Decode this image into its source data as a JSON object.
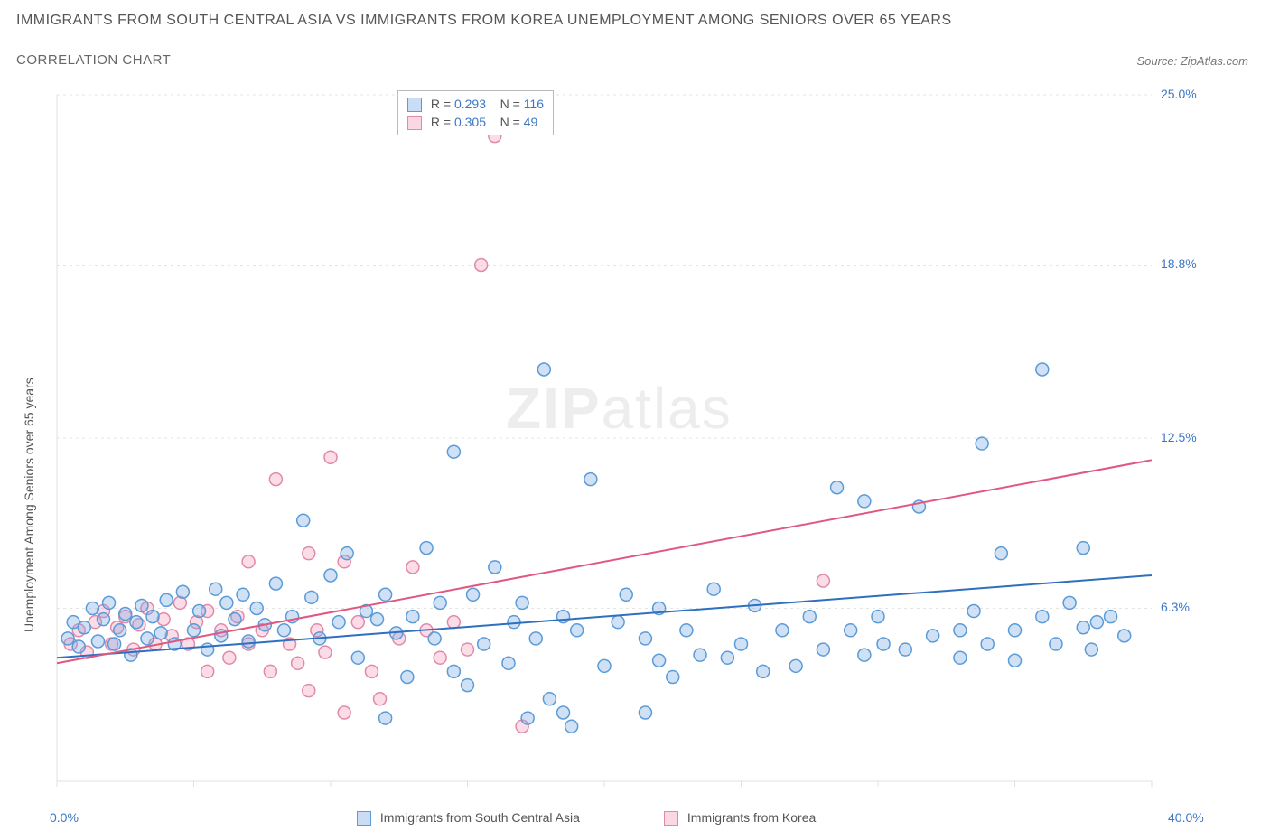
{
  "title": "IMMIGRANTS FROM SOUTH CENTRAL ASIA VS IMMIGRANTS FROM KOREA UNEMPLOYMENT AMONG SENIORS OVER 65 YEARS",
  "subtitle": "CORRELATION CHART",
  "source": "Source: ZipAtlas.com",
  "ylabel": "Unemployment Among Seniors over 65 years",
  "watermark_prefix": "ZIP",
  "watermark_suffix": "atlas",
  "stats_legend": {
    "rows": [
      {
        "swatch": "blue",
        "r_label": "R = ",
        "r_value": "0.293",
        "n_label": "N = ",
        "n_value": "116"
      },
      {
        "swatch": "pink",
        "r_label": "R = ",
        "r_value": "0.305",
        "n_label": "N = ",
        "n_value": "49"
      }
    ]
  },
  "series_legend": [
    {
      "swatch": "blue",
      "label": "Immigrants from South Central Asia"
    },
    {
      "swatch": "pink",
      "label": "Immigrants from Korea"
    }
  ],
  "chart": {
    "type": "scatter",
    "xlim": [
      0,
      40
    ],
    "ylim": [
      0,
      25
    ],
    "x_major_ticks": [
      0,
      5,
      10,
      15,
      20,
      25,
      30,
      35,
      40
    ],
    "x_axis_labels": [
      {
        "value": 0,
        "text": "0.0%"
      },
      {
        "value": 40,
        "text": "40.0%"
      }
    ],
    "y_gridlines": [
      {
        "value": 6.3,
        "text": "6.3%"
      },
      {
        "value": 12.5,
        "text": "12.5%"
      },
      {
        "value": 18.8,
        "text": "18.8%"
      },
      {
        "value": 25.0,
        "text": "25.0%"
      }
    ],
    "background_color": "#ffffff",
    "grid_color": "#e4e4e4",
    "axis_color": "#e0e0e0",
    "marker_radius": 7,
    "marker_stroke_width": 1.5,
    "trend_line_width": 2,
    "series": {
      "blue": {
        "fill": "rgba(120,170,230,0.35)",
        "stroke": "#5a9bd8",
        "trend_color": "#2f6fc0",
        "trend": {
          "x1": 0,
          "y1": 4.5,
          "x2": 40,
          "y2": 7.5
        },
        "points": [
          [
            0.4,
            5.2
          ],
          [
            0.6,
            5.8
          ],
          [
            0.8,
            4.9
          ],
          [
            1.0,
            5.6
          ],
          [
            1.3,
            6.3
          ],
          [
            1.5,
            5.1
          ],
          [
            1.7,
            5.9
          ],
          [
            1.9,
            6.5
          ],
          [
            2.1,
            5.0
          ],
          [
            2.3,
            5.5
          ],
          [
            2.5,
            6.1
          ],
          [
            2.7,
            4.6
          ],
          [
            2.9,
            5.8
          ],
          [
            3.1,
            6.4
          ],
          [
            3.3,
            5.2
          ],
          [
            3.5,
            6.0
          ],
          [
            3.8,
            5.4
          ],
          [
            4.0,
            6.6
          ],
          [
            4.3,
            5.0
          ],
          [
            4.6,
            6.9
          ],
          [
            5.0,
            5.5
          ],
          [
            5.2,
            6.2
          ],
          [
            5.5,
            4.8
          ],
          [
            5.8,
            7.0
          ],
          [
            6.0,
            5.3
          ],
          [
            6.2,
            6.5
          ],
          [
            6.5,
            5.9
          ],
          [
            6.8,
            6.8
          ],
          [
            7.0,
            5.1
          ],
          [
            7.3,
            6.3
          ],
          [
            7.6,
            5.7
          ],
          [
            8.0,
            7.2
          ],
          [
            8.3,
            5.5
          ],
          [
            8.6,
            6.0
          ],
          [
            9.0,
            9.5
          ],
          [
            9.3,
            6.7
          ],
          [
            9.6,
            5.2
          ],
          [
            10.0,
            7.5
          ],
          [
            10.3,
            5.8
          ],
          [
            10.6,
            8.3
          ],
          [
            11.0,
            4.5
          ],
          [
            11.3,
            6.2
          ],
          [
            11.7,
            5.9
          ],
          [
            12.0,
            6.8
          ],
          [
            12.0,
            2.3
          ],
          [
            12.4,
            5.4
          ],
          [
            12.8,
            3.8
          ],
          [
            13.0,
            6.0
          ],
          [
            13.5,
            8.5
          ],
          [
            13.8,
            5.2
          ],
          [
            14.0,
            6.5
          ],
          [
            14.5,
            4.0
          ],
          [
            14.5,
            12.0
          ],
          [
            15.0,
            3.5
          ],
          [
            15.2,
            6.8
          ],
          [
            15.6,
            5.0
          ],
          [
            16.0,
            7.8
          ],
          [
            16.5,
            4.3
          ],
          [
            16.7,
            5.8
          ],
          [
            17.0,
            6.5
          ],
          [
            17.2,
            2.3
          ],
          [
            17.5,
            5.2
          ],
          [
            17.8,
            15.0
          ],
          [
            18.0,
            3.0
          ],
          [
            18.5,
            6.0
          ],
          [
            18.5,
            2.5
          ],
          [
            18.8,
            2.0
          ],
          [
            19.0,
            5.5
          ],
          [
            19.5,
            11.0
          ],
          [
            20.0,
            4.2
          ],
          [
            20.5,
            5.8
          ],
          [
            20.8,
            6.8
          ],
          [
            21.5,
            5.2
          ],
          [
            21.5,
            2.5
          ],
          [
            22.0,
            6.3
          ],
          [
            22.0,
            4.4
          ],
          [
            22.5,
            3.8
          ],
          [
            23.0,
            5.5
          ],
          [
            23.5,
            4.6
          ],
          [
            24.0,
            7.0
          ],
          [
            24.5,
            4.5
          ],
          [
            25.0,
            5.0
          ],
          [
            25.5,
            6.4
          ],
          [
            25.8,
            4.0
          ],
          [
            26.5,
            5.5
          ],
          [
            27.0,
            4.2
          ],
          [
            27.5,
            6.0
          ],
          [
            28.0,
            4.8
          ],
          [
            28.5,
            10.7
          ],
          [
            29.0,
            5.5
          ],
          [
            29.5,
            10.2
          ],
          [
            29.5,
            4.6
          ],
          [
            30.0,
            6.0
          ],
          [
            30.2,
            5.0
          ],
          [
            31.0,
            4.8
          ],
          [
            31.5,
            10.0
          ],
          [
            32.0,
            5.3
          ],
          [
            33.0,
            5.5
          ],
          [
            33.0,
            4.5
          ],
          [
            33.5,
            6.2
          ],
          [
            33.8,
            12.3
          ],
          [
            34.0,
            5.0
          ],
          [
            34.5,
            8.3
          ],
          [
            35.0,
            5.5
          ],
          [
            35.0,
            4.4
          ],
          [
            36.0,
            6.0
          ],
          [
            36.0,
            15.0
          ],
          [
            36.5,
            5.0
          ],
          [
            37.0,
            6.5
          ],
          [
            37.5,
            5.6
          ],
          [
            37.5,
            8.5
          ],
          [
            37.8,
            4.8
          ],
          [
            38.0,
            5.8
          ],
          [
            38.5,
            6.0
          ],
          [
            39.0,
            5.3
          ]
        ]
      },
      "pink": {
        "fill": "rgba(245,155,185,0.35)",
        "stroke": "#e08aaa",
        "trend_color": "#e05880",
        "trend": {
          "x1": 0,
          "y1": 4.3,
          "x2": 40,
          "y2": 11.7
        },
        "points": [
          [
            0.5,
            5.0
          ],
          [
            0.8,
            5.5
          ],
          [
            1.1,
            4.7
          ],
          [
            1.4,
            5.8
          ],
          [
            1.7,
            6.2
          ],
          [
            2.0,
            5.0
          ],
          [
            2.2,
            5.6
          ],
          [
            2.5,
            6.0
          ],
          [
            2.8,
            4.8
          ],
          [
            3.0,
            5.7
          ],
          [
            3.3,
            6.3
          ],
          [
            3.6,
            5.0
          ],
          [
            3.9,
            5.9
          ],
          [
            4.2,
            5.3
          ],
          [
            4.5,
            6.5
          ],
          [
            4.8,
            5.0
          ],
          [
            5.1,
            5.8
          ],
          [
            5.5,
            4.0
          ],
          [
            5.5,
            6.2
          ],
          [
            6.0,
            5.5
          ],
          [
            6.3,
            4.5
          ],
          [
            6.6,
            6.0
          ],
          [
            7.0,
            5.0
          ],
          [
            7.0,
            8.0
          ],
          [
            7.5,
            5.5
          ],
          [
            7.8,
            4.0
          ],
          [
            8.0,
            11.0
          ],
          [
            8.5,
            5.0
          ],
          [
            8.8,
            4.3
          ],
          [
            9.2,
            8.3
          ],
          [
            9.2,
            3.3
          ],
          [
            9.5,
            5.5
          ],
          [
            9.8,
            4.7
          ],
          [
            10.0,
            11.8
          ],
          [
            10.5,
            8.0
          ],
          [
            10.5,
            2.5
          ],
          [
            11.0,
            5.8
          ],
          [
            11.5,
            4.0
          ],
          [
            11.8,
            3.0
          ],
          [
            12.5,
            5.2
          ],
          [
            13.0,
            7.8
          ],
          [
            13.5,
            5.5
          ],
          [
            14.0,
            4.5
          ],
          [
            14.5,
            5.8
          ],
          [
            15.0,
            4.8
          ],
          [
            15.5,
            18.8
          ],
          [
            16.0,
            23.5
          ],
          [
            17.0,
            2.0
          ],
          [
            28.0,
            7.3
          ]
        ]
      }
    }
  }
}
